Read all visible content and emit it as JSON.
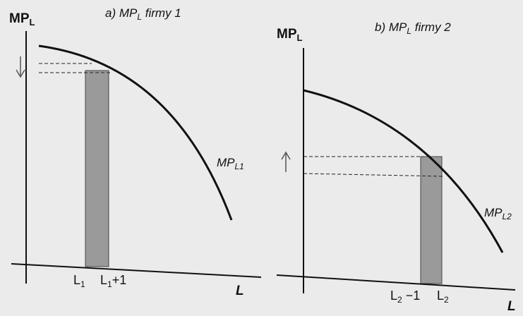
{
  "panel_a": {
    "y_axis_label": "MP",
    "y_axis_sub": "L",
    "title_prefix": "a) MP",
    "title_sub": "L",
    "title_suffix": " firmy 1",
    "curve_label": "MP",
    "curve_label_sub": "L1",
    "tick_left": "L",
    "tick_left_sub": "1",
    "tick_right": "L",
    "tick_right_sub": "1",
    "tick_right_suffix": "+1",
    "x_axis_label": "L",
    "arrow_direction": "down"
  },
  "panel_b": {
    "y_axis_label": "MP",
    "y_axis_sub": "L",
    "title_prefix": "b) MP",
    "title_sub": "L",
    "title_suffix": " firmy 2",
    "curve_label": "MP",
    "curve_label_sub": "L2",
    "tick_left": "L",
    "tick_left_sub": "2",
    "tick_left_suffix": " −1",
    "tick_right": "L",
    "tick_right_sub": "2",
    "x_axis_label": "L",
    "arrow_direction": "up"
  },
  "colors": {
    "curve": "#111111",
    "shaded_band": "#9a9a9a",
    "background": "#ebebeb"
  }
}
